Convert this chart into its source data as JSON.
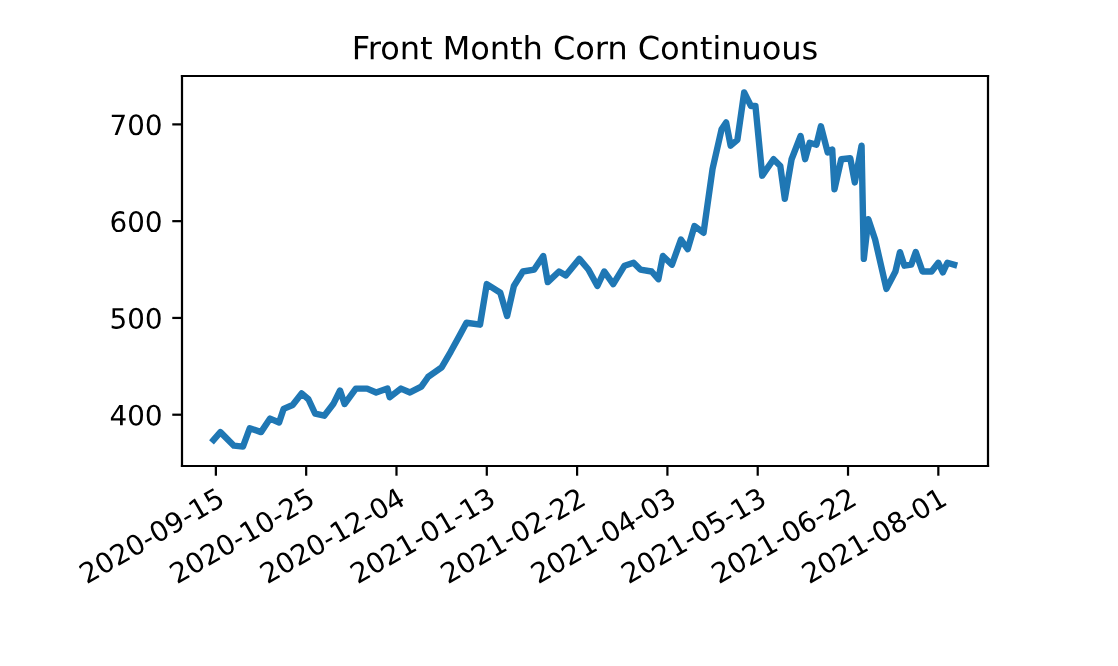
{
  "chart_data": {
    "type": "line",
    "title": "Front Month Corn Continuous",
    "x": [
      "2020-09-14",
      "2020-09-17",
      "2020-09-23",
      "2020-09-27",
      "2020-09-30",
      "2020-10-05",
      "2020-10-09",
      "2020-10-13",
      "2020-10-15",
      "2020-10-19",
      "2020-10-23",
      "2020-10-26",
      "2020-10-29",
      "2020-11-02",
      "2020-11-06",
      "2020-11-09",
      "2020-11-11",
      "2020-11-16",
      "2020-11-21",
      "2020-11-25",
      "2020-11-30",
      "2020-12-01",
      "2020-12-06",
      "2020-12-10",
      "2020-12-15",
      "2020-12-18",
      "2020-12-24",
      "2020-12-28",
      "2021-01-01",
      "2021-01-04",
      "2021-01-10",
      "2021-01-13",
      "2021-01-19",
      "2021-01-22",
      "2021-01-25",
      "2021-01-29",
      "2021-02-03",
      "2021-02-07",
      "2021-02-09",
      "2021-02-14",
      "2021-02-17",
      "2021-02-23",
      "2021-02-27",
      "2021-03-03",
      "2021-03-06",
      "2021-03-10",
      "2021-03-15",
      "2021-03-19",
      "2021-03-22",
      "2021-03-27",
      "2021-03-30",
      "2021-04-01",
      "2021-04-05",
      "2021-04-09",
      "2021-04-12",
      "2021-04-15",
      "2021-04-19",
      "2021-04-23",
      "2021-04-27",
      "2021-04-29",
      "2021-05-01",
      "2021-05-04",
      "2021-05-07",
      "2021-05-10",
      "2021-05-12",
      "2021-05-15",
      "2021-05-20",
      "2021-05-23",
      "2021-05-25",
      "2021-05-28",
      "2021-06-01",
      "2021-06-03",
      "2021-06-05",
      "2021-06-08",
      "2021-06-10",
      "2021-06-13",
      "2021-06-15",
      "2021-06-16",
      "2021-06-19",
      "2021-06-23",
      "2021-06-25",
      "2021-06-28",
      "2021-06-29",
      "2021-07-01",
      "2021-07-04",
      "2021-07-09",
      "2021-07-13",
      "2021-07-15",
      "2021-07-17",
      "2021-07-20",
      "2021-07-22",
      "2021-07-25",
      "2021-07-29",
      "2021-08-01",
      "2021-08-03",
      "2021-08-05",
      "2021-08-08"
    ],
    "series": [
      {
        "color": "#1f77b4",
        "values": [
          374,
          382,
          368,
          367,
          386,
          382,
          396,
          392,
          406,
          410,
          422,
          416,
          401,
          399,
          411,
          425,
          411,
          427,
          427,
          423,
          427,
          418,
          427,
          423,
          429,
          439,
          449,
          465,
          482,
          495,
          493,
          535,
          526,
          502,
          533,
          548,
          550,
          564,
          537,
          548,
          544,
          561,
          550,
          533,
          548,
          535,
          554,
          557,
          550,
          548,
          540,
          564,
          555,
          581,
          571,
          595,
          588,
          654,
          695,
          702,
          678,
          684,
          733,
          719,
          719,
          647,
          664,
          657,
          623,
          664,
          688,
          664,
          681,
          679,
          698,
          671,
          674,
          633,
          664,
          665,
          640,
          678,
          561,
          602,
          581,
          530,
          548,
          568,
          554,
          555,
          568,
          548,
          548,
          557,
          547,
          557,
          555
        ]
      }
    ],
    "xlim": [
      "2020-08-31",
      "2021-08-23"
    ],
    "xticks": [
      "2020-09-15",
      "2020-10-25",
      "2020-12-04",
      "2021-01-13",
      "2021-02-22",
      "2021-04-03",
      "2021-05-13",
      "2021-06-22",
      "2021-08-01"
    ],
    "ylim": [
      347,
      750
    ],
    "yticks": [
      400,
      500,
      600,
      700
    ],
    "grid": false,
    "legend": false,
    "marker": "none",
    "line_style": "solid"
  }
}
